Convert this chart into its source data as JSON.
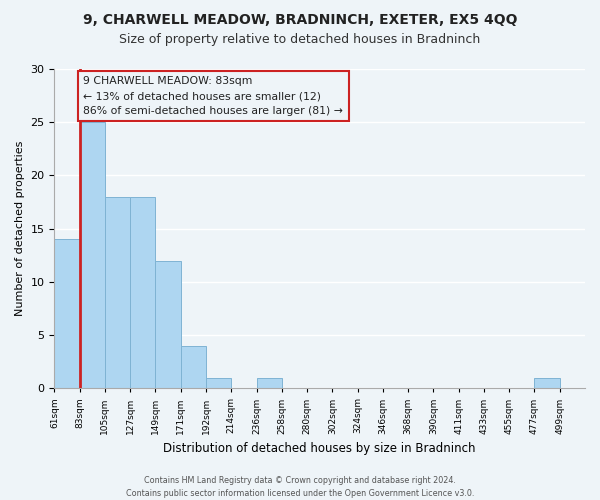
{
  "title": "9, CHARWELL MEADOW, BRADNINCH, EXETER, EX5 4QQ",
  "subtitle": "Size of property relative to detached houses in Bradninch",
  "xlabel": "Distribution of detached houses by size in Bradninch",
  "ylabel": "Number of detached properties",
  "footer_line1": "Contains HM Land Registry data © Crown copyright and database right 2024.",
  "footer_line2": "Contains public sector information licensed under the Open Government Licence v3.0.",
  "bin_labels": [
    "61sqm",
    "83sqm",
    "105sqm",
    "127sqm",
    "149sqm",
    "171sqm",
    "192sqm",
    "214sqm",
    "236sqm",
    "258sqm",
    "280sqm",
    "302sqm",
    "324sqm",
    "346sqm",
    "368sqm",
    "390sqm",
    "411sqm",
    "433sqm",
    "455sqm",
    "477sqm",
    "499sqm"
  ],
  "bar_values": [
    14,
    25,
    18,
    18,
    12,
    4,
    1,
    0,
    1,
    0,
    0,
    0,
    0,
    0,
    0,
    0,
    0,
    0,
    0,
    1,
    0
  ],
  "normal_color": "#aed6f1",
  "edge_color": "#7fb3d3",
  "red_line_color": "#cc2222",
  "annotation_text_line1": "9 CHARWELL MEADOW: 83sqm",
  "annotation_text_line2": "← 13% of detached houses are smaller (12)",
  "annotation_text_line3": "86% of semi-detached houses are larger (81) →",
  "annotation_box_edge_color": "#cc2222",
  "annotation_box_face_color": "#eef4f8",
  "red_line_x": 1,
  "ylim": [
    0,
    30
  ],
  "yticks": [
    0,
    5,
    10,
    15,
    20,
    25,
    30
  ],
  "background_color": "#eef4f8",
  "title_fontsize": 10,
  "subtitle_fontsize": 9,
  "ylabel_fontsize": 8,
  "xlabel_fontsize": 8.5,
  "footer_fontsize": 5.8
}
